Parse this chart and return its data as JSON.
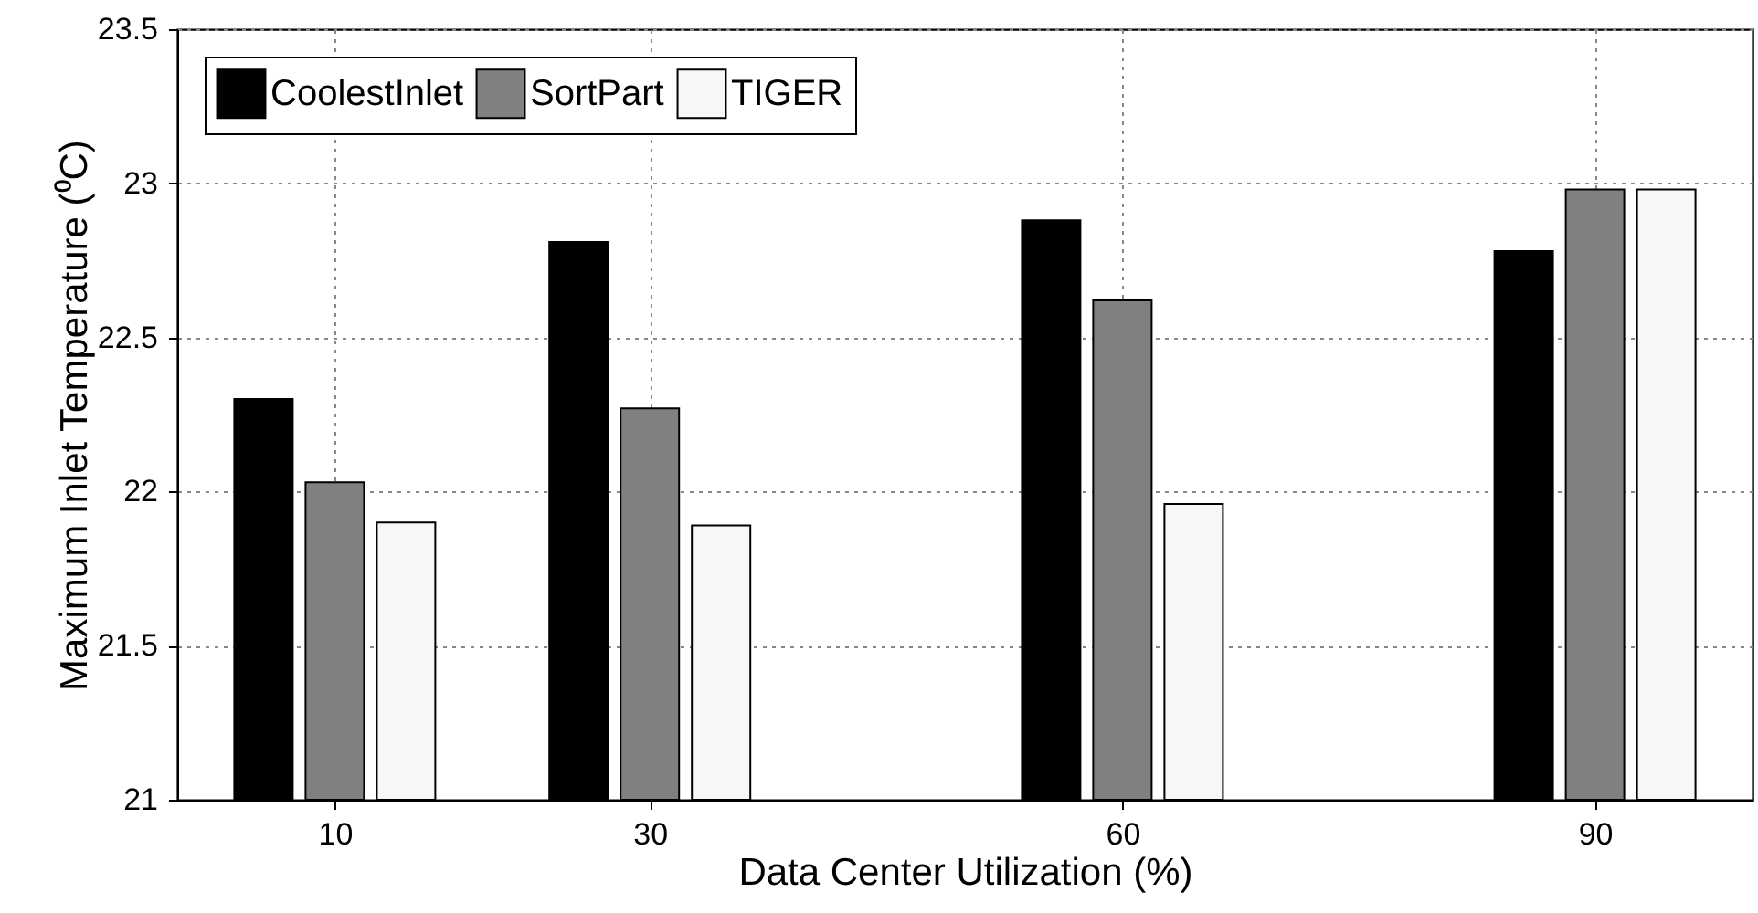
{
  "chart_data": {
    "type": "bar",
    "xlabel": "Data Center Utilization (%)",
    "ylabel": "Maximum Inlet Temperature (⁰C)",
    "x": [
      10,
      30,
      60,
      90
    ],
    "series": [
      {
        "name": "CoolestInlet",
        "color": "#000000",
        "values": [
          22.3,
          22.81,
          22.88,
          22.78
        ]
      },
      {
        "name": "SortPart",
        "color": "#808080",
        "values": [
          22.03,
          22.27,
          22.62,
          22.98
        ]
      },
      {
        "name": "TIGER",
        "color": "#f7f7f7",
        "values": [
          21.9,
          21.89,
          21.96,
          22.98
        ]
      }
    ],
    "xlim": [
      0,
      100
    ],
    "xticks": [
      10,
      30,
      60,
      90
    ],
    "ylim": [
      21,
      23.5
    ],
    "yticks": [
      21,
      21.5,
      22,
      22.5,
      23,
      23.5
    ],
    "grid": true,
    "legend": "top left"
  }
}
